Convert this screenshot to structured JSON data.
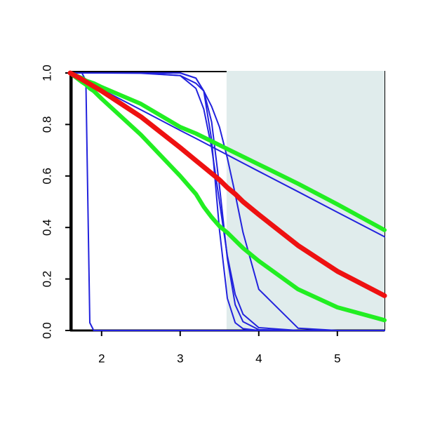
{
  "chart_data": {
    "type": "line",
    "x": [
      1.6,
      1.75,
      1.8,
      1.85,
      1.9,
      2,
      2.5,
      3,
      3.2,
      3.3,
      3.4,
      3.5,
      3.6,
      3.7,
      3.8,
      4,
      4.5,
      5,
      5.6
    ],
    "series": [
      {
        "color": "#2222dd",
        "line_width": 2,
        "values": [
          1,
          1,
          0.97,
          0.03,
          0,
          0,
          0,
          0,
          0,
          0,
          0,
          0,
          0,
          0,
          0,
          0,
          0,
          0,
          0
        ]
      },
      {
        "color": "#2222dd",
        "line_width": 2,
        "values": [
          1,
          1,
          1,
          1,
          1,
          1,
          1,
          1,
          0.98,
          0.93,
          0.74,
          0.39,
          0.125,
          0.03,
          0.007,
          0,
          0,
          0,
          0
        ]
      },
      {
        "color": "#2222dd",
        "line_width": 2,
        "values": [
          1,
          1,
          1,
          1,
          1,
          1,
          1,
          1,
          0.98,
          0.93,
          0.81,
          0.56,
          0.28,
          0.1,
          0.034,
          0.003,
          0,
          0,
          0
        ]
      },
      {
        "color": "#2222dd",
        "line_width": 2,
        "values": [
          1,
          1,
          1,
          1,
          1,
          1,
          1,
          0.99,
          0.94,
          0.86,
          0.71,
          0.5,
          0.29,
          0.14,
          0.063,
          0.011,
          0,
          0,
          0
        ]
      },
      {
        "color": "#2222dd",
        "line_width": 2,
        "values": [
          1,
          1,
          1,
          1,
          1,
          1,
          0.999,
          0.99,
          0.96,
          0.93,
          0.87,
          0.79,
          0.67,
          0.53,
          0.38,
          0.16,
          0.009,
          0,
          0
        ]
      },
      {
        "color": "#2222dd",
        "line_width": 2,
        "values": [
          1,
          0.976,
          0.968,
          0.96,
          0.952,
          0.936,
          0.857,
          0.777,
          0.746,
          0.73,
          0.714,
          0.698,
          0.682,
          0.666,
          0.65,
          0.618,
          0.539,
          0.459,
          0.364
        ]
      },
      {
        "color": "#22ee22",
        "line_width": 6,
        "values": [
          1,
          0.98,
          0.97,
          0.965,
          0.96,
          0.945,
          0.88,
          0.79,
          0.765,
          0.75,
          0.735,
          0.72,
          0.705,
          0.69,
          0.675,
          0.645,
          0.57,
          0.49,
          0.39
        ]
      },
      {
        "color": "#22ee22",
        "line_width": 6,
        "values": [
          1,
          0.965,
          0.955,
          0.94,
          0.93,
          0.9,
          0.76,
          0.6,
          0.53,
          0.48,
          0.44,
          0.405,
          0.38,
          0.35,
          0.32,
          0.27,
          0.16,
          0.09,
          0.04
        ]
      },
      {
        "color": "#ee1111",
        "line_width": 7,
        "values": [
          1,
          0.975,
          0.966,
          0.957,
          0.948,
          0.93,
          0.83,
          0.71,
          0.66,
          0.635,
          0.61,
          0.585,
          0.555,
          0.53,
          0.5,
          0.45,
          0.33,
          0.23,
          0.135
        ]
      }
    ],
    "highlight_xrange": [
      3.59,
      5.6
    ],
    "highlight_color": "#e0ecec",
    "xlim": [
      1.6,
      5.6
    ],
    "ylim": [
      0,
      1
    ],
    "xticks": [
      2,
      3,
      4,
      5
    ],
    "yticks": [
      {
        "value": 0,
        "label": "0.0"
      },
      {
        "value": 0.2,
        "label": "0.2"
      },
      {
        "value": 0.4,
        "label": "0.4"
      },
      {
        "value": 0.6,
        "label": "0.6"
      },
      {
        "value": 0.8,
        "label": "0.8"
      },
      {
        "value": 1,
        "label": "1.0"
      }
    ]
  }
}
